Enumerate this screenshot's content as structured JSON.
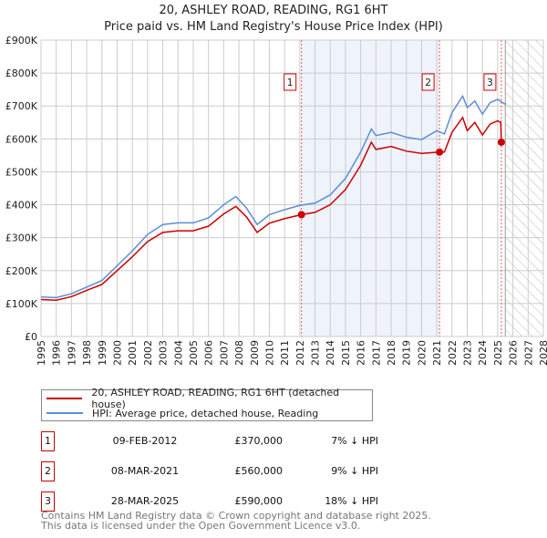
{
  "chart_data": {
    "type": "line",
    "title": "20, ASHLEY ROAD, READING, RG1 6HT",
    "subtitle": "Price paid vs. HM Land Registry's House Price Index (HPI)",
    "xlim": [
      1995,
      2028
    ],
    "ylim": [
      0,
      900000
    ],
    "yticks": [
      {
        "v": 0,
        "label": "£0"
      },
      {
        "v": 100000,
        "label": "£100K"
      },
      {
        "v": 200000,
        "label": "£200K"
      },
      {
        "v": 300000,
        "label": "£300K"
      },
      {
        "v": 400000,
        "label": "£400K"
      },
      {
        "v": 500000,
        "label": "£500K"
      },
      {
        "v": 600000,
        "label": "£600K"
      },
      {
        "v": 700000,
        "label": "£700K"
      },
      {
        "v": 800000,
        "label": "£800K"
      },
      {
        "v": 900000,
        "label": "£900K"
      }
    ],
    "xticks": [
      "1995",
      "1996",
      "1997",
      "1998",
      "1999",
      "2000",
      "2001",
      "2002",
      "2003",
      "2004",
      "2005",
      "2006",
      "2007",
      "2008",
      "2009",
      "2010",
      "2011",
      "2012",
      "2013",
      "2014",
      "2015",
      "2016",
      "2017",
      "2018",
      "2019",
      "2020",
      "2021",
      "2022",
      "2023",
      "2024",
      "2025",
      "2026",
      "2027",
      "2028"
    ],
    "grid": true,
    "shaded_range": [
      2012.11,
      2021.18
    ],
    "forecast_hatch_from": 2025.5,
    "series": [
      {
        "name": "20, ASHLEY ROAD, READING, RG1 6HT (detached house)",
        "color": "#cc0000",
        "x": [
          1995,
          1996,
          1997,
          1998,
          1999,
          2000,
          2001,
          2002,
          2003,
          2004,
          2005,
          2006,
          2007,
          2007.8,
          2008.5,
          2009.2,
          2010,
          2011,
          2012.11,
          2013,
          2014,
          2015,
          2016,
          2016.7,
          2017,
          2018,
          2019,
          2020,
          2021.18,
          2021.5,
          2022,
          2022.7,
          2023,
          2023.5,
          2024,
          2024.5,
          2025,
          2025.2,
          2025.24
        ],
        "y": [
          112000,
          110000,
          121000,
          140000,
          158000,
          200000,
          242000,
          288000,
          316000,
          321000,
          321000,
          335000,
          372000,
          395000,
          363000,
          316000,
          344000,
          358000,
          370000,
          377000,
          400000,
          446000,
          520000,
          590000,
          568000,
          577000,
          563000,
          556000,
          560000,
          560000,
          620000,
          665000,
          625000,
          650000,
          612000,
          645000,
          655000,
          650000,
          590000
        ]
      },
      {
        "name": "HPI: Average price, detached house, Reading",
        "color": "#5b8ed6",
        "x": [
          1995,
          1996,
          1997,
          1998,
          1999,
          2000,
          2001,
          2002,
          2003,
          2004,
          2005,
          2006,
          2007,
          2007.8,
          2008.5,
          2009.2,
          2010,
          2011,
          2012,
          2013,
          2014,
          2015,
          2016,
          2016.7,
          2017,
          2018,
          2019,
          2020,
          2021,
          2021.5,
          2022,
          2022.7,
          2023,
          2023.5,
          2024,
          2024.5,
          2025,
          2025.5
        ],
        "y": [
          120000,
          118000,
          130000,
          150000,
          170000,
          215000,
          260000,
          310000,
          340000,
          345000,
          345000,
          360000,
          400000,
          425000,
          390000,
          340000,
          370000,
          385000,
          398000,
          405000,
          430000,
          480000,
          560000,
          630000,
          610000,
          620000,
          605000,
          598000,
          625000,
          615000,
          680000,
          730000,
          695000,
          715000,
          675000,
          710000,
          720000,
          705000
        ]
      }
    ],
    "sales": [
      {
        "id": "1",
        "x": 2012.11,
        "y": 370000
      },
      {
        "id": "2",
        "x": 2021.18,
        "y": 560000
      },
      {
        "id": "3",
        "x": 2025.24,
        "y": 590000
      }
    ]
  },
  "legend": [
    {
      "label": "20, ASHLEY ROAD, READING, RG1 6HT (detached house)"
    },
    {
      "label": "HPI: Average price, detached house, Reading"
    }
  ],
  "transactions": [
    {
      "id": "1",
      "date": "09-FEB-2012",
      "price": "£370,000",
      "hpi": "7% ↓ HPI"
    },
    {
      "id": "2",
      "date": "08-MAR-2021",
      "price": "£560,000",
      "hpi": "9% ↓ HPI"
    },
    {
      "id": "3",
      "date": "28-MAR-2025",
      "price": "£590,000",
      "hpi": "18% ↓ HPI"
    }
  ],
  "footer": [
    "Contains HM Land Registry data © Crown copyright and database right 2025.",
    "This data is licensed under the Open Government Licence v3.0."
  ]
}
